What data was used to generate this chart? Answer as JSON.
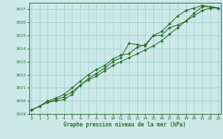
{
  "x_hours": [
    0,
    1,
    2,
    3,
    4,
    5,
    6,
    7,
    8,
    9,
    10,
    11,
    12,
    13,
    14,
    15,
    16,
    17,
    18,
    19,
    20,
    21,
    22,
    23
  ],
  "line1": [
    1029.3,
    1029.6,
    1029.9,
    1030.1,
    1030.3,
    1030.7,
    1031.2,
    1031.6,
    1031.9,
    1032.3,
    1032.7,
    1033.0,
    1033.3,
    1033.6,
    1033.9,
    1034.2,
    1034.6,
    1035.1,
    1035.6,
    1036.1,
    1036.5,
    1036.9,
    1037.1,
    1037.1
  ],
  "line2": [
    1029.3,
    1029.6,
    1029.9,
    1030.0,
    1030.1,
    1030.5,
    1031.2,
    1031.7,
    1032.1,
    1032.5,
    1033.0,
    1033.3,
    1034.4,
    1034.3,
    1034.2,
    1035.0,
    1035.0,
    1035.6,
    1035.8,
    1036.1,
    1036.7,
    1037.2,
    1037.2,
    1037.1
  ],
  "line3": [
    1029.3,
    1029.6,
    1030.0,
    1030.2,
    1030.5,
    1031.0,
    1031.5,
    1032.0,
    1032.4,
    1032.7,
    1033.2,
    1033.5,
    1033.6,
    1034.1,
    1034.3,
    1035.0,
    1035.3,
    1035.9,
    1036.5,
    1036.9,
    1037.1,
    1037.3,
    1037.2,
    1037.1
  ],
  "ylim": [
    1029,
    1037.5
  ],
  "yticks": [
    1029,
    1030,
    1031,
    1032,
    1033,
    1034,
    1035,
    1036,
    1037
  ],
  "xlim": [
    -0.3,
    23.3
  ],
  "xticks": [
    0,
    1,
    2,
    3,
    4,
    5,
    6,
    7,
    8,
    9,
    10,
    11,
    12,
    13,
    14,
    15,
    16,
    17,
    18,
    19,
    20,
    21,
    22,
    23
  ],
  "xlabel": "Graphe pression niveau de la mer (hPa)",
  "line_color": "#2d6e2d",
  "bg_color": "#cce8e8",
  "grid_color": "#99cccc",
  "marker": "D",
  "marker_size": 2.0,
  "linewidth": 0.8
}
